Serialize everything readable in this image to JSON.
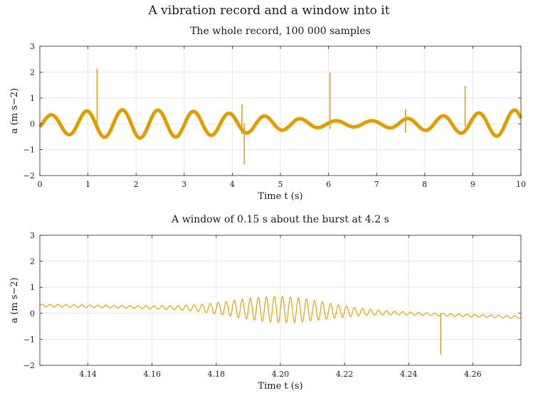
{
  "figure_title": "A vibration record and a window into it",
  "color": "#e6a100",
  "chart_data": [
    {
      "type": "line",
      "title": "The whole record, 100 000 samples",
      "xlabel": "Time t (s)",
      "ylabel": "a (m s−2)",
      "xlim": [
        0,
        10
      ],
      "ylim": [
        -2,
        3
      ],
      "xticks": [
        0,
        1,
        2,
        3,
        4,
        5,
        6,
        7,
        8,
        9,
        10
      ],
      "xtick_labels": [
        "0",
        "1",
        "2",
        "3",
        "4",
        "5",
        "6",
        "7",
        "8",
        "9",
        "10"
      ],
      "yticks": [
        -2,
        -1,
        0,
        1,
        2,
        3
      ],
      "ytick_labels": [
        "−2",
        "−1",
        "0",
        "1",
        "2",
        "3"
      ],
      "grid": true,
      "signal": {
        "description": "slowly amplitude-modulated oscillation of about 1.35 Hz with a thick high-frequency band",
        "carrier_hz": 1.35,
        "amplitude_envelope": [
          [
            0,
            0.3
          ],
          [
            1,
            0.5
          ],
          [
            2,
            0.55
          ],
          [
            3,
            0.5
          ],
          [
            4,
            0.4
          ],
          [
            5,
            0.25
          ],
          [
            6,
            0.12
          ],
          [
            7,
            0.12
          ],
          [
            8,
            0.25
          ],
          [
            9,
            0.4
          ],
          [
            10,
            0.55
          ]
        ],
        "noise_band": 0.07
      },
      "spikes": [
        {
          "t": 1.19,
          "peak": 2.12,
          "trough": -0.05
        },
        {
          "t": 4.2,
          "peak": 0.75,
          "trough": -0.4
        },
        {
          "t": 4.25,
          "peak": 0.0,
          "trough": -1.58
        },
        {
          "t": 6.03,
          "peak": 1.98,
          "trough": -0.2
        },
        {
          "t": 7.6,
          "peak": 0.58,
          "trough": -0.35
        },
        {
          "t": 8.84,
          "peak": 1.47,
          "trough": -0.1
        }
      ]
    },
    {
      "type": "line",
      "title": "A window of 0.15 s about the burst at 4.2 s",
      "xlabel": "Time t (s)",
      "ylabel": "a (m s−2)",
      "xlim": [
        4.125,
        4.275
      ],
      "ylim": [
        -2,
        3
      ],
      "xticks": [
        4.14,
        4.16,
        4.18,
        4.2,
        4.22,
        4.24,
        4.26
      ],
      "xtick_labels": [
        "4.14",
        "4.16",
        "4.18",
        "4.20",
        "4.22",
        "4.24",
        "4.26"
      ],
      "yticks": [
        -2,
        -1,
        0,
        1,
        2,
        3
      ],
      "ytick_labels": [
        "−2",
        "−1",
        "0",
        "1",
        "2",
        "3"
      ],
      "grid": true,
      "signal": {
        "description": "burst of high-frequency oscillation peaking near 4.20 s superposed on a slow drift",
        "burst_hz": 400,
        "burst_center": 4.2,
        "burst_peak_amplitude": 0.45,
        "ambient_amplitude": 0.05,
        "drift": [
          [
            4.125,
            0.3
          ],
          [
            4.2,
            0.15
          ],
          [
            4.275,
            -0.15
          ]
        ]
      },
      "spikes": [
        {
          "t": 4.25,
          "peak": 0.0,
          "trough": -1.58
        }
      ]
    }
  ]
}
